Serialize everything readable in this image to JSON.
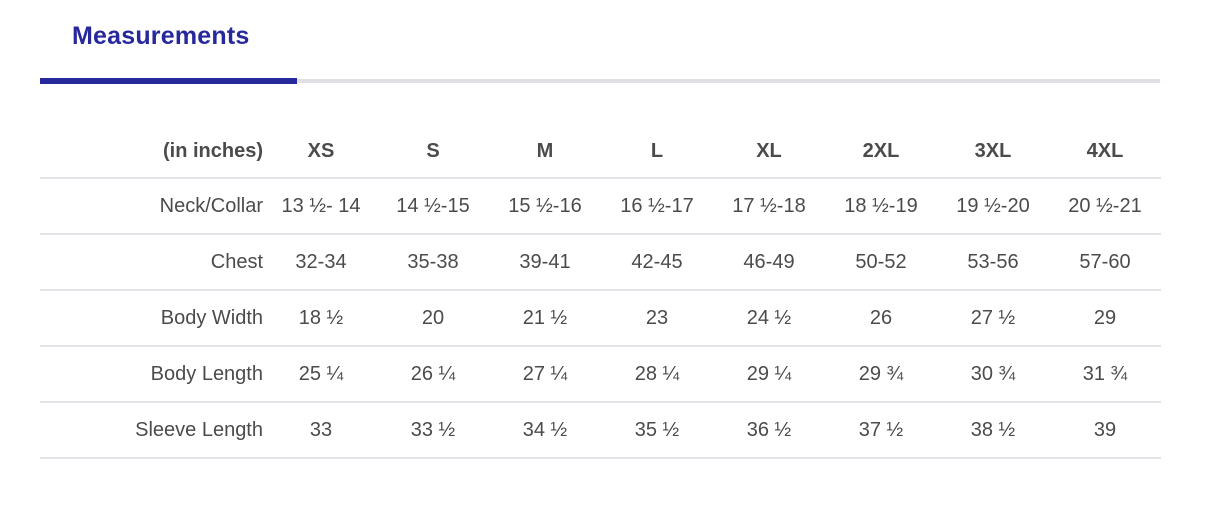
{
  "section": {
    "title": "Measurements",
    "accent_color": "#28289d",
    "inactive_rule_color": "#dfdfe5",
    "divider_color": "#e3e3e8",
    "text_color": "#4b4b4b"
  },
  "table": {
    "unit_label": "(in inches)",
    "columns": [
      "XS",
      "S",
      "M",
      "L",
      "XL",
      "2XL",
      "3XL",
      "4XL"
    ],
    "rows": [
      {
        "label": "Neck/Collar",
        "values": [
          "13 ½- 14",
          "14 ½-15",
          "15 ½-16",
          "16 ½-17",
          "17 ½-18",
          "18 ½-19",
          "19 ½-20",
          "20 ½-21"
        ]
      },
      {
        "label": "Chest",
        "values": [
          "32-34",
          "35-38",
          "39-41",
          "42-45",
          "46-49",
          "50-52",
          "53-56",
          "57-60"
        ]
      },
      {
        "label": "Body Width",
        "values": [
          "18 ½",
          "20",
          "21 ½",
          "23",
          "24 ½",
          "26",
          "27 ½",
          "29"
        ]
      },
      {
        "label": "Body Length",
        "values": [
          "25 ¼",
          "26 ¼",
          "27 ¼",
          "28 ¼",
          "29 ¼",
          "29 ¾",
          "30 ¾",
          "31 ¾"
        ]
      },
      {
        "label": "Sleeve Length",
        "values": [
          "33",
          "33 ½",
          "34 ½",
          "35 ½",
          "36 ½",
          "37 ½",
          "38 ½",
          "39"
        ]
      }
    ]
  }
}
